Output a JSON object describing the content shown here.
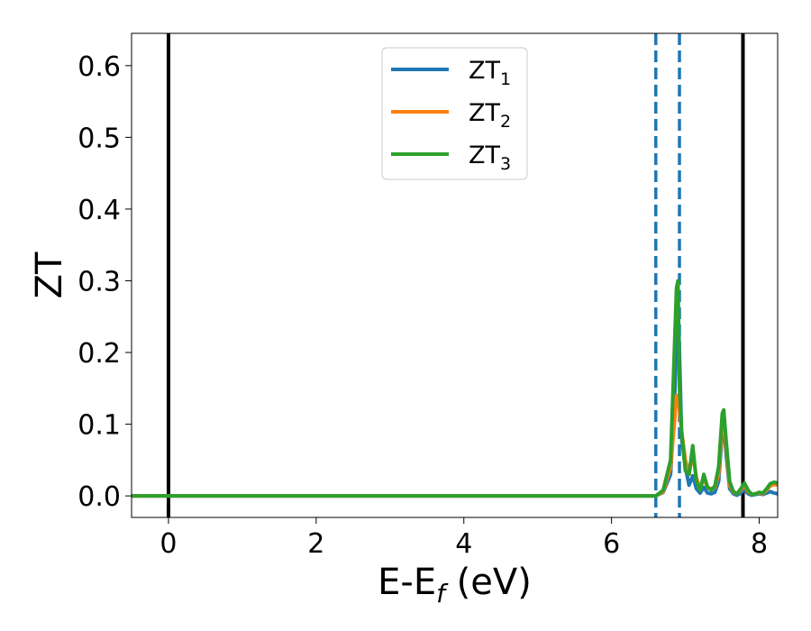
{
  "chart_data": {
    "type": "line",
    "xlabel": "E-E",
    "xlabel_sub": "f",
    "xlabel_unit": " (eV)",
    "ylabel": "ZT",
    "xlim": [
      -0.5,
      8.25
    ],
    "ylim": [
      -0.03,
      0.645
    ],
    "x_ticks": [
      0,
      2,
      4,
      6,
      8
    ],
    "y_ticks": [
      0.0,
      0.1,
      0.2,
      0.3,
      0.4,
      0.5,
      0.6
    ],
    "x_tick_labels": [
      "0",
      "2",
      "4",
      "6",
      "8"
    ],
    "y_tick_labels": [
      "0.0",
      "0.1",
      "0.2",
      "0.3",
      "0.4",
      "0.5",
      "0.6"
    ],
    "grid": false,
    "legend_position": "top-center",
    "vertical_lines": [
      {
        "x": 0.0,
        "style": "solid",
        "color": "#000000"
      },
      {
        "x": 7.78,
        "style": "solid",
        "color": "#000000"
      },
      {
        "x": 6.6,
        "style": "dashed",
        "color": "#1f77b4"
      },
      {
        "x": 6.92,
        "style": "dashed",
        "color": "#1f77b4"
      }
    ],
    "series": [
      {
        "name": "ZT",
        "subscript": "1",
        "color": "#1f77b4",
        "x": [
          -0.5,
          6.6,
          6.7,
          6.8,
          6.85,
          6.88,
          6.9,
          6.92,
          6.95,
          7.0,
          7.05,
          7.1,
          7.15,
          7.2,
          7.25,
          7.3,
          7.35,
          7.4,
          7.45,
          7.5,
          7.52,
          7.55,
          7.6,
          7.65,
          7.7,
          7.75,
          7.8,
          7.85,
          7.9,
          7.95,
          8.0,
          8.05,
          8.1,
          8.15,
          8.2,
          8.25
        ],
        "y": [
          0.0,
          0.0,
          0.005,
          0.03,
          0.12,
          0.22,
          0.275,
          0.2,
          0.08,
          0.04,
          0.015,
          0.028,
          0.01,
          0.004,
          0.012,
          0.004,
          0.003,
          0.005,
          0.02,
          0.09,
          0.1,
          0.06,
          0.01,
          0.003,
          0.001,
          0.004,
          0.008,
          0.003,
          0.001,
          0.002,
          0.003,
          0.002,
          0.004,
          0.006,
          0.004,
          0.003
        ]
      },
      {
        "name": "ZT",
        "subscript": "2",
        "color": "#ff7f0e",
        "x": [
          -0.5,
          6.6,
          6.7,
          6.8,
          6.85,
          6.88,
          6.9,
          6.92,
          6.95,
          7.0,
          7.05,
          7.1,
          7.15,
          7.2,
          7.25,
          7.3,
          7.35,
          7.4,
          7.45,
          7.5,
          7.52,
          7.55,
          7.6,
          7.65,
          7.7,
          7.75,
          7.8,
          7.85,
          7.9,
          7.95,
          8.0,
          8.05,
          8.1,
          8.15,
          8.2,
          8.25
        ],
        "y": [
          0.0,
          0.0,
          0.006,
          0.04,
          0.1,
          0.14,
          0.135,
          0.12,
          0.09,
          0.05,
          0.03,
          0.06,
          0.025,
          0.01,
          0.025,
          0.012,
          0.01,
          0.012,
          0.03,
          0.1,
          0.115,
          0.07,
          0.015,
          0.005,
          0.003,
          0.008,
          0.015,
          0.006,
          0.002,
          0.003,
          0.004,
          0.003,
          0.008,
          0.014,
          0.016,
          0.015
        ]
      },
      {
        "name": "ZT",
        "subscript": "3",
        "color": "#2ca02c",
        "x": [
          -0.5,
          6.6,
          6.7,
          6.8,
          6.85,
          6.88,
          6.9,
          6.92,
          6.95,
          7.0,
          7.05,
          7.1,
          7.15,
          7.2,
          7.25,
          7.3,
          7.35,
          7.4,
          7.45,
          7.5,
          7.52,
          7.55,
          7.6,
          7.65,
          7.7,
          7.75,
          7.8,
          7.85,
          7.9,
          7.95,
          8.0,
          8.05,
          8.1,
          8.15,
          8.2,
          8.25
        ],
        "y": [
          0.0,
          0.0,
          0.008,
          0.05,
          0.2,
          0.29,
          0.3,
          0.15,
          0.09,
          0.035,
          0.03,
          0.07,
          0.02,
          0.008,
          0.03,
          0.012,
          0.008,
          0.014,
          0.04,
          0.115,
          0.12,
          0.08,
          0.02,
          0.006,
          0.003,
          0.01,
          0.018,
          0.008,
          0.002,
          0.003,
          0.005,
          0.004,
          0.01,
          0.017,
          0.019,
          0.018
        ]
      }
    ]
  }
}
